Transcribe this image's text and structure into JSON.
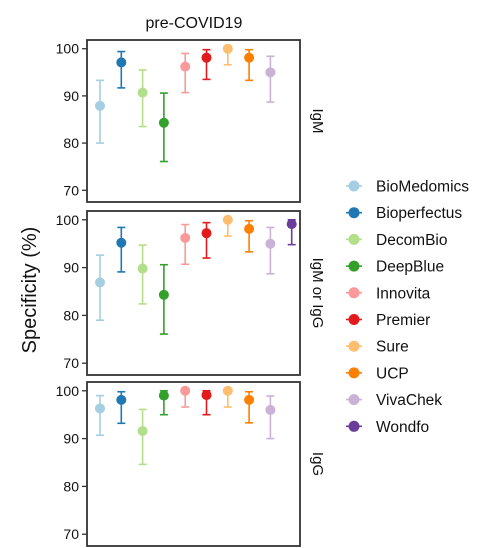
{
  "chart_data": {
    "type": "dot-errorbar",
    "title": "pre-COVID19",
    "ylabel": "Specificity (%)",
    "xlabel": "",
    "ylim": [
      69,
      101
    ],
    "yticks": [
      70,
      80,
      90,
      100
    ],
    "legend_position": "right",
    "categories": [
      "BioMedomics",
      "Bioperfectus",
      "DecomBio",
      "DeepBlue",
      "Innovita",
      "Premier",
      "Sure",
      "UCP",
      "VivaChek",
      "Wondfo"
    ],
    "colors": [
      "#a6cee3",
      "#1f78b4",
      "#b2df8a",
      "#33a02c",
      "#fb9a99",
      "#e31a1c",
      "#fdbf6f",
      "#ff7f00",
      "#cab2d6",
      "#6a3d9a"
    ],
    "panels": [
      {
        "strip": "IgM",
        "series": [
          {
            "name": "BioMedomics",
            "value": 87.9,
            "lower": 80.0,
            "upper": 93.3
          },
          {
            "name": "Bioperfectus",
            "value": 97.1,
            "lower": 91.7,
            "upper": 99.4
          },
          {
            "name": "DecomBio",
            "value": 90.7,
            "lower": 83.5,
            "upper": 95.5
          },
          {
            "name": "DeepBlue",
            "value": 84.3,
            "lower": 76.1,
            "upper": 90.6
          },
          {
            "name": "Innovita",
            "value": 96.2,
            "lower": 90.7,
            "upper": 99.0
          },
          {
            "name": "Premier",
            "value": 98.1,
            "lower": 93.5,
            "upper": 99.8
          },
          {
            "name": "Sure",
            "value": 100.0,
            "lower": 96.6,
            "upper": 100.0
          },
          {
            "name": "UCP",
            "value": 98.1,
            "lower": 93.3,
            "upper": 99.8
          },
          {
            "name": "VivaChek",
            "value": 95.0,
            "lower": 88.7,
            "upper": 98.4
          }
        ]
      },
      {
        "strip": "IgM or IgG",
        "series": [
          {
            "name": "BioMedomics",
            "value": 86.9,
            "lower": 79.0,
            "upper": 92.6
          },
          {
            "name": "Bioperfectus",
            "value": 95.2,
            "lower": 89.1,
            "upper": 98.4
          },
          {
            "name": "DecomBio",
            "value": 89.8,
            "lower": 82.4,
            "upper": 94.7
          },
          {
            "name": "DeepBlue",
            "value": 84.3,
            "lower": 76.1,
            "upper": 90.6
          },
          {
            "name": "Innovita",
            "value": 96.2,
            "lower": 90.7,
            "upper": 99.0
          },
          {
            "name": "Premier",
            "value": 97.2,
            "lower": 92.0,
            "upper": 99.4
          },
          {
            "name": "Sure",
            "value": 100.0,
            "lower": 96.6,
            "upper": 100.0
          },
          {
            "name": "UCP",
            "value": 98.1,
            "lower": 93.3,
            "upper": 99.8
          },
          {
            "name": "VivaChek",
            "value": 95.0,
            "lower": 88.7,
            "upper": 98.4
          },
          {
            "name": "Wondfo",
            "value": 99.1,
            "lower": 94.8,
            "upper": 100.0
          }
        ]
      },
      {
        "strip": "IgG",
        "series": [
          {
            "name": "BioMedomics",
            "value": 96.3,
            "lower": 90.7,
            "upper": 99.0
          },
          {
            "name": "Bioperfectus",
            "value": 98.1,
            "lower": 93.2,
            "upper": 99.8
          },
          {
            "name": "DecomBio",
            "value": 91.6,
            "lower": 84.6,
            "upper": 96.1
          },
          {
            "name": "DeepBlue",
            "value": 99.0,
            "lower": 95.0,
            "upper": 100.0
          },
          {
            "name": "Innovita",
            "value": 100.0,
            "lower": 96.6,
            "upper": 100.0
          },
          {
            "name": "Premier",
            "value": 99.1,
            "lower": 95.0,
            "upper": 100.0
          },
          {
            "name": "Sure",
            "value": 100.0,
            "lower": 96.6,
            "upper": 100.0
          },
          {
            "name": "UCP",
            "value": 98.1,
            "lower": 93.3,
            "upper": 99.8
          },
          {
            "name": "VivaChek",
            "value": 96.0,
            "lower": 90.0,
            "upper": 98.9
          }
        ]
      }
    ]
  }
}
